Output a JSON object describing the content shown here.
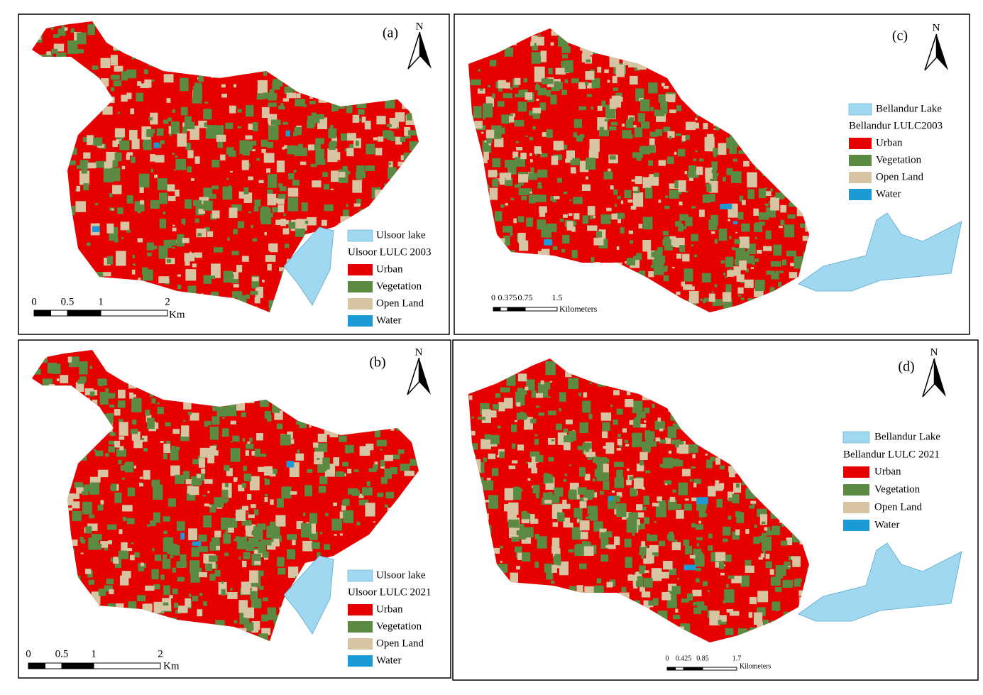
{
  "panels": [
    {
      "label": "(a)",
      "north": "N",
      "legend": {
        "lake": "Ulsoor lake",
        "title": "Ulsoor LULC 2003",
        "items": [
          "Urban",
          "Vegetation",
          "Open Land",
          "Water"
        ]
      },
      "scale": {
        "labels": [
          "0",
          "0.5",
          "1",
          "2"
        ],
        "unit": "Km"
      }
    },
    {
      "label": "(b)",
      "north": "N",
      "legend": {
        "lake": "Ulsoor lake",
        "title": "Ulsoor LULC 2021",
        "items": [
          "Urban",
          "Vegetation",
          "Open Land",
          "Water"
        ]
      },
      "scale": {
        "labels": [
          "0",
          "0.5",
          "1",
          "2"
        ],
        "unit": "Km"
      }
    },
    {
      "label": "(c)",
      "north": "N",
      "legend": {
        "lake": "Bellandur Lake",
        "title": "Bellandur LULC2003",
        "items": [
          "Urban",
          "Vegetation",
          "Open Land",
          "Water"
        ]
      },
      "scale": {
        "labels": [
          "0",
          "0.375",
          "0.75",
          "1.5"
        ],
        "unit": "Kilometers"
      }
    },
    {
      "label": "(d)",
      "north": "N",
      "legend": {
        "lake": "Bellandur Lake",
        "title": "Bellandur LULC 2021",
        "items": [
          "Urban",
          "Vegetation",
          "Open Land",
          "Water"
        ]
      },
      "scale": {
        "labels": [
          "0",
          "0.425",
          "0.85",
          "1.7"
        ],
        "unit": "Kilometers"
      }
    }
  ]
}
